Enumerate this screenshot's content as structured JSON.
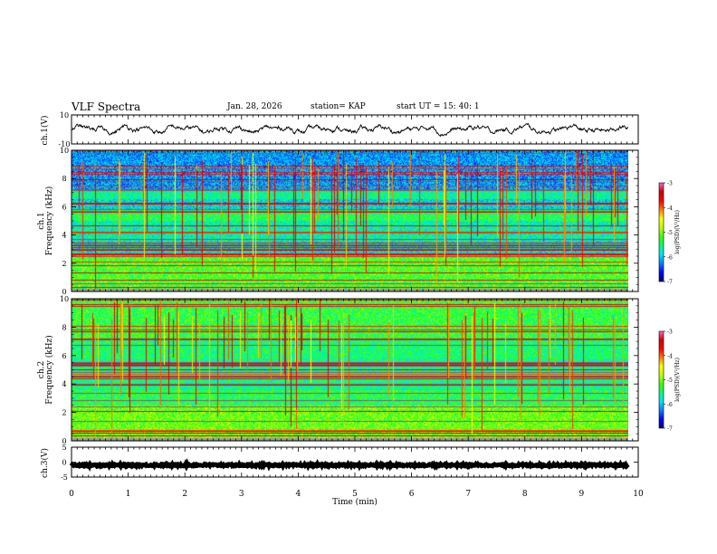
{
  "header": {
    "title": "VLF Spectra",
    "date": "Jan. 28, 2026",
    "station": "station= KAP",
    "start_ut": "start UT =  15: 40: 1"
  },
  "colors": {
    "colorbar": [
      "#000080",
      "#0000ff",
      "#0080ff",
      "#00e0ff",
      "#00ff80",
      "#40ff00",
      "#c0ff00",
      "#ffff00",
      "#ff8000",
      "#ff0000",
      "#d00000",
      "#ff66cc"
    ],
    "trace": "#000000"
  },
  "chart_data": [
    {
      "type": "line",
      "panel": "ch1-voltage",
      "ylabel": "ch.1(V)",
      "ylim": [
        -10,
        10
      ],
      "yticks": [
        "10",
        "-10"
      ],
      "xlim": [
        0,
        10
      ],
      "description_values": "noisy waveform oscillating around 0 V, amplitude roughly +/-4 V"
    },
    {
      "type": "heatmap",
      "panel": "ch1-spectrogram",
      "ylabel": "ch.1\nFrequency (kHz)",
      "ylabel_line1": "ch.1",
      "ylabel_line2": "Frequency (kHz)",
      "ylim": [
        0,
        10
      ],
      "yticks": [
        "0",
        "2",
        "4",
        "6",
        "8",
        "10"
      ],
      "xlim": [
        0,
        10
      ],
      "colorbar": {
        "label": "log(PSD)(V²/Hz)",
        "range": [
          -7,
          -3
        ],
        "ticks": [
          "-3",
          "-4",
          "-5",
          "-6",
          "-7"
        ]
      }
    },
    {
      "type": "heatmap",
      "panel": "ch2-spectrogram",
      "ylabel": "ch.2\nFrequency (kHz)",
      "ylabel_line1": "ch.2",
      "ylabel_line2": "Frequency (kHz)",
      "ylim": [
        0,
        10
      ],
      "yticks": [
        "0",
        "2",
        "4",
        "6",
        "8",
        "10"
      ],
      "xlim": [
        0,
        10
      ],
      "colorbar": {
        "label": "log(PSD)(V²/Hz)",
        "range": [
          -7,
          -3
        ],
        "ticks": [
          "-3",
          "-4",
          "-5",
          "-6",
          "-7"
        ]
      }
    },
    {
      "type": "line",
      "panel": "ch3-voltage",
      "ylabel": "ch.3(V)",
      "ylim": [
        -5,
        5
      ],
      "yticks": [
        "5",
        "0",
        "-5"
      ],
      "xlim": [
        0,
        10
      ],
      "xlabel": "Time (min)",
      "xticks": [
        "0",
        "1",
        "2",
        "3",
        "4",
        "5",
        "6",
        "7",
        "8",
        "9",
        "10"
      ],
      "description_values": "near-constant signal around -1 V"
    }
  ]
}
